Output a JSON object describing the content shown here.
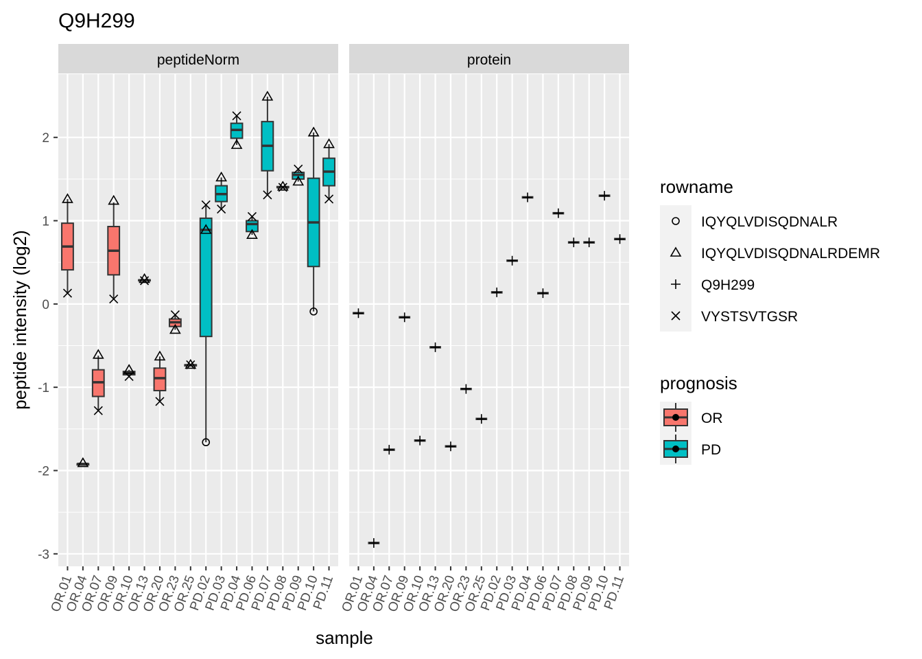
{
  "chart_data": {
    "type": "boxplot",
    "title": "Q9H299",
    "x_label": "sample",
    "y_label": "peptide intensity (log2)",
    "ylim": [
      -3.15,
      2.76
    ],
    "yticks": [
      -3,
      -2,
      -1,
      0,
      1,
      2
    ],
    "grid": true,
    "legend_position": "right",
    "categories": [
      "OR.01",
      "OR.04",
      "OR.07",
      "OR.09",
      "OR.10",
      "OR.13",
      "OR.20",
      "OR.23",
      "OR.25",
      "PD.02",
      "PD.03",
      "PD.04",
      "PD.06",
      "PD.07",
      "PD.08",
      "PD.09",
      "PD.10",
      "PD.11"
    ],
    "shape_legend_title": "rowname",
    "fill_legend_title": "prognosis",
    "groups": [
      {
        "name": "OR",
        "color": "#f8766d"
      },
      {
        "name": "PD",
        "color": "#00bfc4"
      }
    ],
    "panels": [
      {
        "name": "peptideNorm",
        "boxes": [
          {
            "group": 0,
            "low": 0.13,
            "q1": 0.41,
            "median": 0.69,
            "q3": 0.97,
            "high": 1.26
          },
          {
            "group": 0,
            "low": -1.93,
            "q1": -1.93,
            "median": -1.92,
            "q3": -1.92,
            "high": -1.91
          },
          {
            "group": 0,
            "low": -1.28,
            "q1": -1.11,
            "median": -0.94,
            "q3": -0.79,
            "high": -0.62
          },
          {
            "group": 0,
            "low": 0.06,
            "q1": 0.35,
            "median": 0.64,
            "q3": 0.93,
            "high": 1.22
          },
          {
            "group": 0,
            "low": -0.87,
            "q1": -0.85,
            "median": -0.83,
            "q3": -0.81,
            "high": -0.79
          },
          {
            "group": 0,
            "low": 0.28,
            "q1": 0.28,
            "median": 0.285,
            "q3": 0.29,
            "high": 0.29
          },
          {
            "group": 0,
            "low": -1.17,
            "q1": -1.04,
            "median": -0.89,
            "q3": -0.77,
            "high": -0.63
          },
          {
            "group": 0,
            "low": -0.31,
            "q1": -0.27,
            "median": -0.22,
            "q3": -0.18,
            "high": -0.13
          },
          {
            "group": 0,
            "low": -0.74,
            "q1": -0.74,
            "median": -0.735,
            "q3": -0.73,
            "high": -0.73
          },
          {
            "group": 1,
            "low": -1.66,
            "q1": -0.39,
            "median": 0.89,
            "q3": 1.03,
            "high": 1.18
          },
          {
            "group": 1,
            "low": 1.14,
            "q1": 1.23,
            "median": 1.32,
            "q3": 1.42,
            "high": 1.52
          },
          {
            "group": 1,
            "low": 1.91,
            "q1": 1.99,
            "median": 2.09,
            "q3": 2.17,
            "high": 2.26
          },
          {
            "group": 1,
            "low": 0.83,
            "q1": 0.87,
            "median": 0.96,
            "q3": 1.0,
            "high": 1.05
          },
          {
            "group": 1,
            "low": 1.31,
            "q1": 1.6,
            "median": 1.9,
            "q3": 2.19,
            "high": 2.49
          },
          {
            "group": 1,
            "low": 1.4,
            "q1": 1.4,
            "median": 1.4,
            "q3": 1.41,
            "high": 1.41
          },
          {
            "group": 1,
            "low": 1.47,
            "q1": 1.5,
            "median": 1.55,
            "q3": 1.58,
            "high": 1.62
          },
          {
            "group": 1,
            "low": -0.09,
            "q1": 0.45,
            "median": 0.98,
            "q3": 1.51,
            "high": 2.06
          },
          {
            "group": 1,
            "low": 1.26,
            "q1": 1.42,
            "median": 1.59,
            "q3": 1.75,
            "high": 1.92
          }
        ]
      },
      {
        "name": "protein",
        "boxes": []
      }
    ],
    "series": [
      {
        "name": "IQYQLVDISQDNALR",
        "shape": "circle",
        "panel": 0,
        "values": [
          null,
          null,
          null,
          null,
          null,
          null,
          null,
          null,
          null,
          -1.66,
          null,
          null,
          null,
          null,
          null,
          null,
          -0.09,
          null
        ]
      },
      {
        "name": "IQYQLVDISQDNALRDEMR",
        "shape": "triangle",
        "panel": 0,
        "values": [
          1.26,
          -1.91,
          -0.61,
          1.24,
          -0.79,
          0.3,
          -0.63,
          -0.31,
          -0.73,
          0.89,
          1.52,
          1.91,
          0.83,
          2.49,
          1.41,
          1.47,
          2.06,
          1.92
        ]
      },
      {
        "name": "Q9H299",
        "shape": "plus",
        "panel": 1,
        "values": [
          -0.11,
          -2.87,
          -1.75,
          -0.16,
          -1.64,
          -0.52,
          -1.71,
          -1.02,
          -1.38,
          0.14,
          0.52,
          1.28,
          0.13,
          1.09,
          0.74,
          0.74,
          1.3,
          0.78
        ]
      },
      {
        "name": "VYSTSVTGSR",
        "shape": "x",
        "panel": 0,
        "values": [
          0.13,
          null,
          -1.28,
          0.06,
          -0.87,
          0.28,
          -1.17,
          -0.13,
          -0.73,
          1.19,
          1.14,
          2.26,
          1.05,
          1.31,
          1.4,
          1.62,
          null,
          1.26
        ]
      }
    ]
  }
}
